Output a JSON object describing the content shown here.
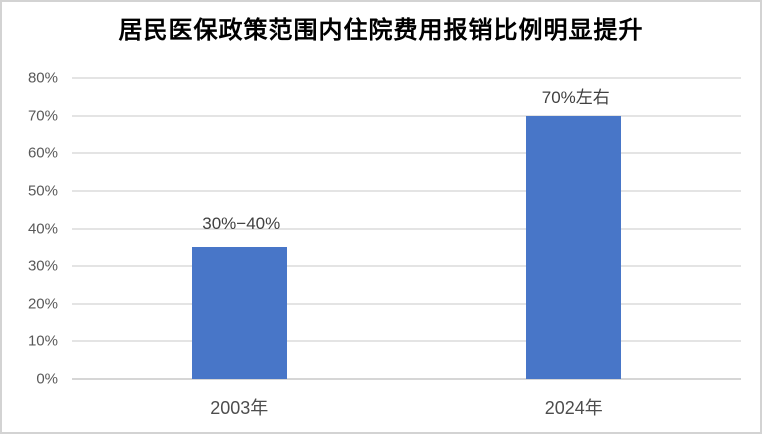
{
  "chart_data": {
    "type": "bar",
    "title": "居民医保政策范围内住院费用报销比例明显提升",
    "categories": [
      "2003年",
      "2024年"
    ],
    "values": [
      35,
      70
    ],
    "data_labels": [
      "30%−40%",
      "70%左右"
    ],
    "xlabel": "",
    "ylabel": "",
    "ylim": [
      0,
      80
    ],
    "ytick_step": 10,
    "ytick_labels": [
      "0%",
      "10%",
      "20%",
      "30%",
      "40%",
      "50%",
      "60%",
      "70%",
      "80%"
    ],
    "grid": true,
    "legend": false,
    "colors": {
      "bar": "#4876c8",
      "title": "#000000",
      "axis_tick_label": "#595959",
      "category_label": "#4d4d4d",
      "data_label": "#404040",
      "gridline": "#e4e4e4",
      "baseline": "#d6d6d6",
      "frame_border": "#d3d3d3",
      "background": "#ffffff"
    }
  }
}
